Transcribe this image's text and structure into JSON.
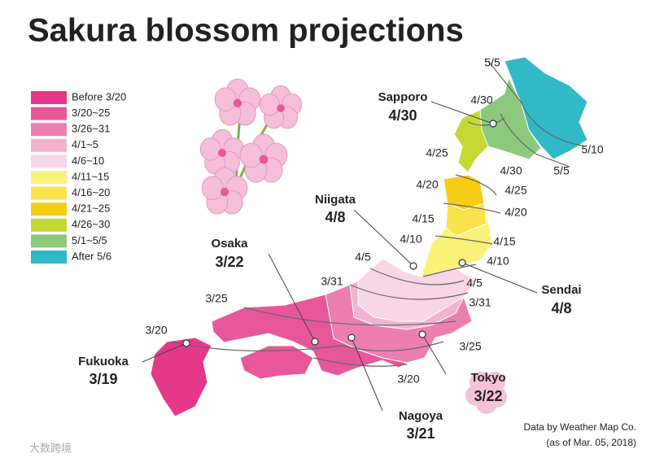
{
  "title": "Sakura blossom projections",
  "legend": [
    {
      "label": "Before 3/20",
      "color": "#e5388a"
    },
    {
      "label": "3/20~25",
      "color": "#e8579a"
    },
    {
      "label": "3/26~31",
      "color": "#ec7fb0"
    },
    {
      "label": "4/1~5",
      "color": "#f3b3d0"
    },
    {
      "label": "4/6~10",
      "color": "#f8d6e6"
    },
    {
      "label": "4/11~15",
      "color": "#fbf27a"
    },
    {
      "label": "4/16~20",
      "color": "#f9e24a"
    },
    {
      "label": "4/21~25",
      "color": "#f6cc14"
    },
    {
      "label": "4/26~30",
      "color": "#c4d934"
    },
    {
      "label": "5/1~5/5",
      "color": "#8cc97c"
    },
    {
      "label": "After 5/6",
      "color": "#32b9c8"
    }
  ],
  "cities": [
    {
      "name": "Sapporo",
      "date": "4/30"
    },
    {
      "name": "Niigata",
      "date": "4/8"
    },
    {
      "name": "Osaka",
      "date": "3/22"
    },
    {
      "name": "Sendai",
      "date": "4/8"
    },
    {
      "name": "Fukuoka",
      "date": "3/19"
    },
    {
      "name": "Tokyo",
      "date": "3/22"
    },
    {
      "name": "Nagoya",
      "date": "3/21"
    }
  ],
  "contour_labels": [
    "5/5",
    "4/30",
    "4/25",
    "4/20",
    "4/15",
    "4/10",
    "4/5",
    "3/31",
    "3/25",
    "3/20",
    "5/10",
    "5/5",
    "4/30",
    "4/25",
    "4/20",
    "4/15",
    "4/10",
    "4/5",
    "3/31",
    "3/25",
    "3/20"
  ],
  "source": [
    "Data by Weather Map Co.",
    "(as of  Mar. 05, 2018)"
  ],
  "watermark": "大数跨境"
}
